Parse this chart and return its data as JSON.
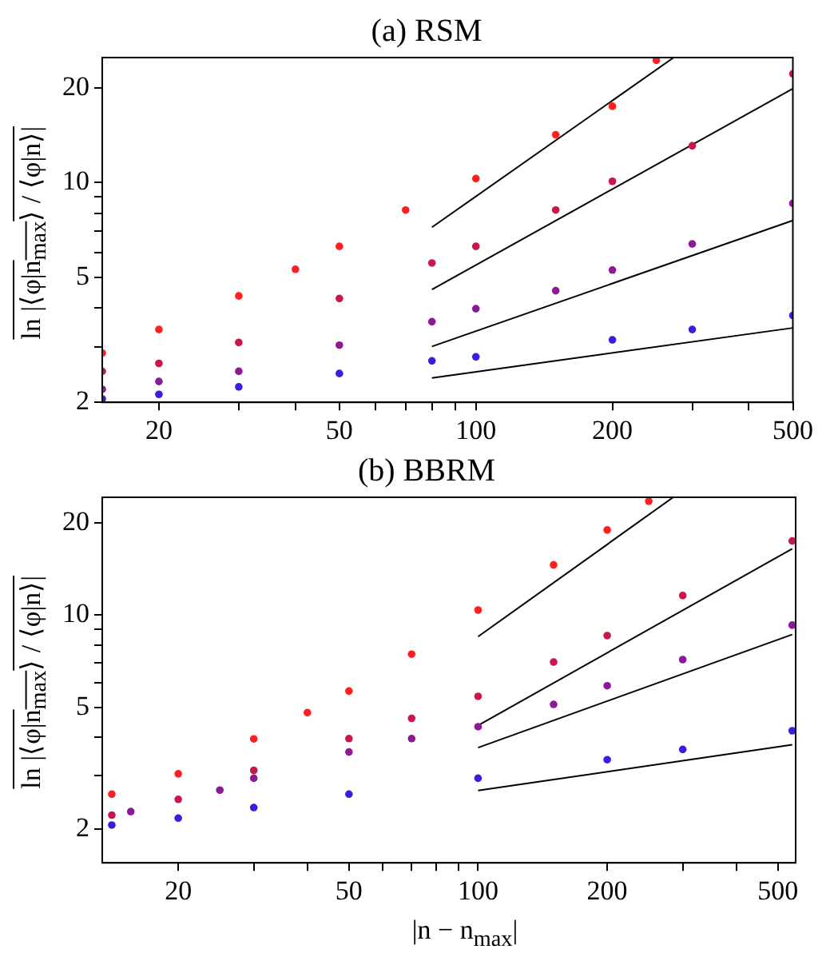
{
  "chart_data": [
    {
      "type": "scatter",
      "title": "(a) RSM",
      "ylabel": "ln |⟨φ|n$_{max}$⟩ / ⟨φ|n⟩|",
      "log": "xy",
      "marker": "circle",
      "grid": false,
      "xlim": [
        15,
        500
      ],
      "ylim": [
        2,
        25
      ],
      "xticks": [
        20,
        {
          "value": 30,
          "label": null
        },
        {
          "value": 40,
          "label": null
        },
        50,
        {
          "value": 60,
          "label": null
        },
        {
          "value": 70,
          "label": null
        },
        {
          "value": 80,
          "label": null
        },
        {
          "value": 90,
          "label": null
        },
        100,
        200,
        {
          "value": 300,
          "label": null
        },
        {
          "value": 400,
          "label": null
        },
        500
      ],
      "yticks": [
        2,
        {
          "value": 3,
          "label": null
        },
        {
          "value": 4,
          "label": null
        },
        5,
        {
          "value": 6,
          "label": null
        },
        {
          "value": 7,
          "label": null
        },
        {
          "value": 8,
          "label": null
        },
        {
          "value": 9,
          "label": null
        },
        10,
        20
      ],
      "series": [
        {
          "color": "#ff1f1f",
          "x": [
            15,
            20,
            30,
            40,
            50,
            70,
            100,
            150,
            200,
            250
          ],
          "values": [
            2.87,
            3.41,
            4.36,
            5.3,
            6.27,
            8.18,
            10.3,
            14.2,
            17.5,
            24.5
          ]
        },
        {
          "color": "#c8184a",
          "x": [
            15,
            20,
            30,
            50,
            80,
            100,
            150,
            200,
            300,
            500
          ],
          "values": [
            2.51,
            2.66,
            3.1,
            4.28,
            5.55,
            6.27,
            8.18,
            10.1,
            13.1,
            22.2
          ]
        },
        {
          "color": "#8c1a96",
          "x": [
            15,
            20,
            30,
            50,
            80,
            100,
            150,
            200,
            300,
            500
          ],
          "values": [
            2.2,
            2.33,
            2.51,
            3.04,
            3.61,
            3.97,
            4.53,
            5.27,
            6.38,
            8.59
          ]
        },
        {
          "color": "#3a1ee0",
          "x": [
            15,
            20,
            30,
            50,
            80,
            100,
            200,
            300,
            500
          ],
          "values": [
            2.05,
            2.12,
            2.24,
            2.47,
            2.71,
            2.79,
            3.16,
            3.41,
            3.78
          ]
        },
        {
          "type": "line",
          "marker": "none",
          "color": "#000000",
          "x": [
            80,
            273
          ],
          "values": [
            7.21,
            25
          ]
        },
        {
          "type": "line",
          "marker": "none",
          "color": "#000000",
          "x": [
            80,
            500
          ],
          "values": [
            4.57,
            19.9
          ]
        },
        {
          "type": "line",
          "marker": "none",
          "color": "#000000",
          "x": [
            80,
            500
          ],
          "values": [
            3.01,
            7.58
          ]
        },
        {
          "type": "line",
          "marker": "none",
          "color": "#000000",
          "x": [
            80,
            500
          ],
          "values": [
            2.39,
            3.45
          ]
        }
      ]
    },
    {
      "type": "scatter",
      "title": "(b) BBRM",
      "ylabel": "ln |⟨φ|n$_{max}$⟩ / ⟨φ|n⟩|",
      "xlabel": "|n − n$_{max}$|",
      "log": "xy",
      "marker": "circle",
      "grid": false,
      "xlim": [
        13.3,
        550
      ],
      "ylim": [
        1.55,
        24.3
      ],
      "xticks": [
        20,
        {
          "value": 30,
          "label": null
        },
        {
          "value": 40,
          "label": null
        },
        50,
        {
          "value": 60,
          "label": null
        },
        {
          "value": 70,
          "label": null
        },
        {
          "value": 80,
          "label": null
        },
        {
          "value": 90,
          "label": null
        },
        100,
        200,
        {
          "value": 300,
          "label": null
        },
        {
          "value": 400,
          "label": null
        },
        500
      ],
      "yticks": [
        2,
        {
          "value": 3,
          "label": null
        },
        {
          "value": 4,
          "label": null
        },
        5,
        {
          "value": 6,
          "label": null
        },
        {
          "value": 7,
          "label": null
        },
        {
          "value": 8,
          "label": null
        },
        {
          "value": 9,
          "label": null
        },
        10,
        20
      ],
      "series": [
        {
          "color": "#ff1f1f",
          "x": [
            14,
            20,
            30,
            40,
            50,
            70,
            100,
            150,
            200,
            250
          ],
          "values": [
            2.6,
            3.03,
            3.94,
            4.8,
            5.65,
            7.46,
            10.4,
            14.6,
            19,
            23.6
          ]
        },
        {
          "color": "#c8184a",
          "x": [
            14,
            20,
            30,
            50,
            70,
            100,
            150,
            200,
            300,
            540
          ],
          "values": [
            2.22,
            2.5,
            3.11,
            3.95,
            4.6,
            5.43,
            7.03,
            8.58,
            11.6,
            17.5
          ]
        },
        {
          "color": "#8c1a96",
          "x": [
            15.5,
            25,
            30,
            50,
            70,
            100,
            150,
            200,
            300,
            540
          ],
          "values": [
            2.28,
            2.68,
            2.93,
            3.57,
            3.95,
            4.32,
            5.11,
            5.88,
            7.16,
            9.28
          ]
        },
        {
          "color": "#3a1ee0",
          "x": [
            14,
            20,
            30,
            50,
            100,
            200,
            300,
            540
          ],
          "values": [
            2.06,
            2.17,
            2.35,
            2.6,
            2.93,
            3.37,
            3.64,
            4.19
          ]
        },
        {
          "type": "line",
          "marker": "none",
          "color": "#000000",
          "x": [
            100,
            285
          ],
          "values": [
            8.51,
            24.3
          ]
        },
        {
          "type": "line",
          "marker": "none",
          "color": "#000000",
          "x": [
            100,
            540
          ],
          "values": [
            4.36,
            16.5
          ]
        },
        {
          "type": "line",
          "marker": "none",
          "color": "#000000",
          "x": [
            100,
            540
          ],
          "values": [
            3.69,
            8.65
          ]
        },
        {
          "type": "line",
          "marker": "none",
          "color": "#000000",
          "x": [
            100,
            540
          ],
          "values": [
            2.67,
            3.77
          ]
        }
      ]
    }
  ]
}
